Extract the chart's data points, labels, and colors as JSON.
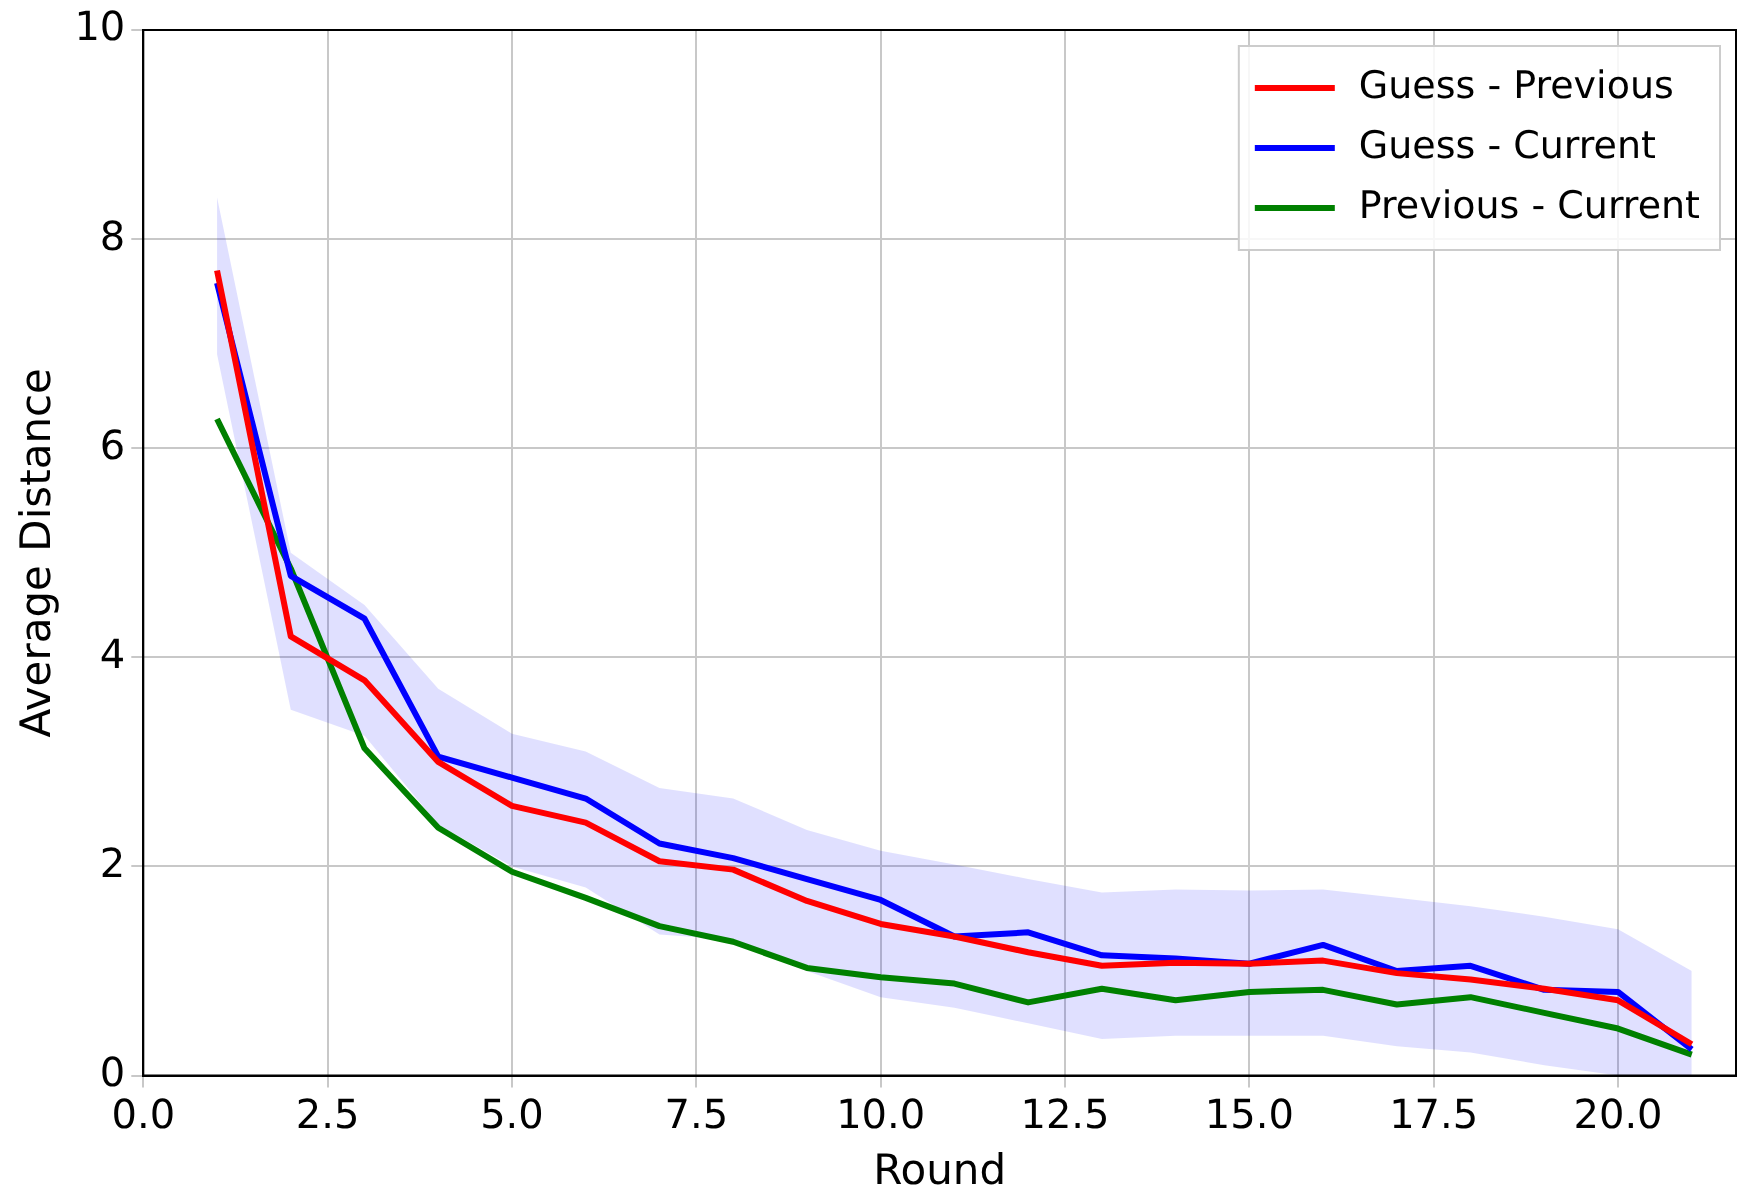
{
  "chart_data": {
    "type": "line",
    "xlabel": "Round",
    "ylabel": "Average Distance",
    "x": [
      1,
      2,
      3,
      4,
      5,
      6,
      7,
      8,
      9,
      10,
      11,
      12,
      13,
      14,
      15,
      16,
      17,
      18,
      19,
      20,
      21
    ],
    "xlim": [
      0,
      21.6
    ],
    "xticks": [
      {
        "value": 0,
        "label": "0.0"
      },
      {
        "value": 2.5,
        "label": "2.5"
      },
      {
        "value": 5,
        "label": "5.0"
      },
      {
        "value": 7.5,
        "label": "7.5"
      },
      {
        "value": 10,
        "label": "10.0"
      },
      {
        "value": 12.5,
        "label": "12.5"
      },
      {
        "value": 15,
        "label": "15.0"
      },
      {
        "value": 17.5,
        "label": "17.5"
      },
      {
        "value": 20,
        "label": "20.0"
      }
    ],
    "ylim": [
      0,
      10
    ],
    "yticks": [
      0,
      2,
      4,
      6,
      8,
      10
    ],
    "grid": true,
    "legend": "top right",
    "marker": "none",
    "line_style": "solid",
    "series": [
      {
        "name": "Guess - Previous",
        "color": "#ff0000",
        "values": [
          7.7,
          4.2,
          3.78,
          3.0,
          2.58,
          2.42,
          2.05,
          1.97,
          1.67,
          1.45,
          1.33,
          1.18,
          1.05,
          1.08,
          1.07,
          1.1,
          0.98,
          0.92,
          0.83,
          0.72,
          0.3
        ]
      },
      {
        "name": "Guess - Current",
        "color": "#0000ff",
        "values": [
          7.58,
          4.78,
          4.37,
          3.05,
          2.85,
          2.65,
          2.22,
          2.08,
          1.88,
          1.68,
          1.33,
          1.37,
          1.15,
          1.12,
          1.07,
          1.25,
          1.0,
          1.05,
          0.82,
          0.8,
          0.25
        ],
        "lower": [
          6.9,
          3.5,
          3.25,
          2.4,
          2.0,
          1.8,
          1.35,
          1.3,
          1.0,
          0.75,
          0.65,
          0.5,
          0.35,
          0.38,
          0.38,
          0.38,
          0.28,
          0.22,
          0.1,
          0.0,
          0.0
        ],
        "upper": [
          8.4,
          5.0,
          4.5,
          3.7,
          3.27,
          3.1,
          2.75,
          2.65,
          2.35,
          2.15,
          2.02,
          1.88,
          1.75,
          1.78,
          1.77,
          1.78,
          1.7,
          1.62,
          1.52,
          1.4,
          1.0
        ]
      },
      {
        "name": "Previous - Current",
        "color": "#008000",
        "values": [
          6.28,
          4.85,
          3.13,
          2.37,
          1.95,
          1.7,
          1.43,
          1.28,
          1.03,
          0.94,
          0.88,
          0.7,
          0.83,
          0.72,
          0.8,
          0.82,
          0.68,
          0.75,
          0.6,
          0.45,
          0.2
        ]
      }
    ]
  }
}
